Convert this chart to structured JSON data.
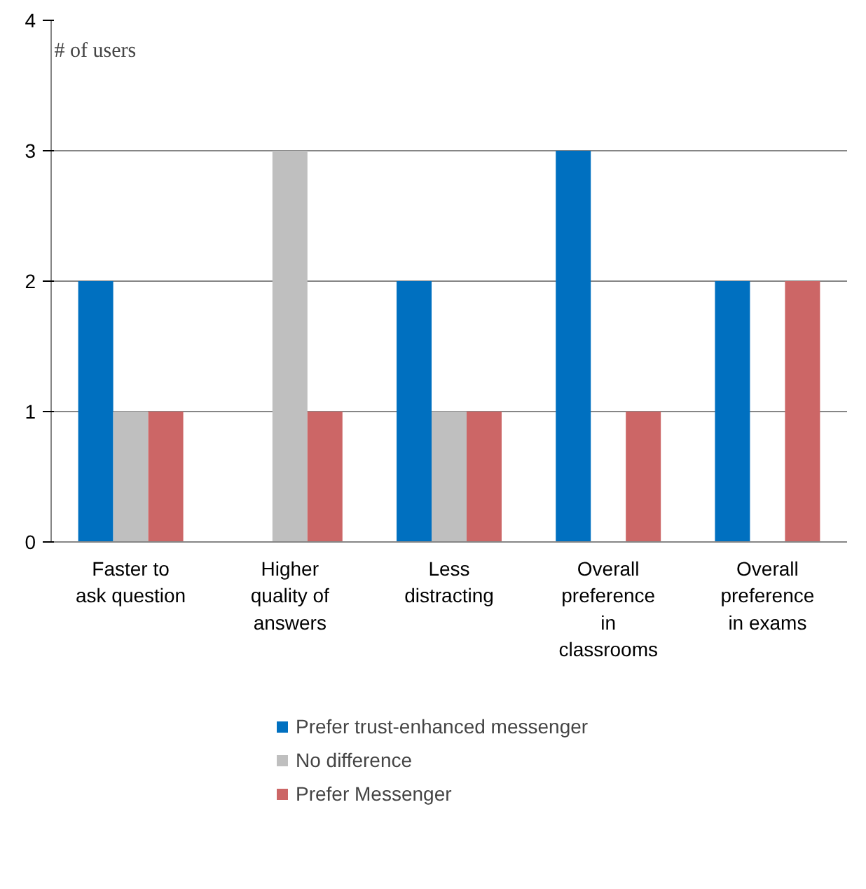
{
  "chart_data": {
    "type": "bar",
    "ylabel": "# of users",
    "categories": [
      "Faster to ask question",
      "Higher quality of answers",
      "Less distracting",
      "Overall preference in classrooms",
      "Overall preference in exams"
    ],
    "series": [
      {
        "name": "Prefer trust-enhanced messenger",
        "color": "#0070c0",
        "values": [
          2,
          0,
          2,
          3,
          2
        ]
      },
      {
        "name": "No difference",
        "color": "#bfbfbf",
        "values": [
          1,
          3,
          1,
          0,
          0
        ]
      },
      {
        "name": "Prefer Messenger",
        "color": "#cc6666",
        "values": [
          1,
          1,
          1,
          1,
          2
        ]
      }
    ],
    "ylim": [
      0,
      4
    ],
    "yticks": [
      0,
      1,
      2,
      3,
      4
    ],
    "grid": "y",
    "legend": "bottom"
  }
}
